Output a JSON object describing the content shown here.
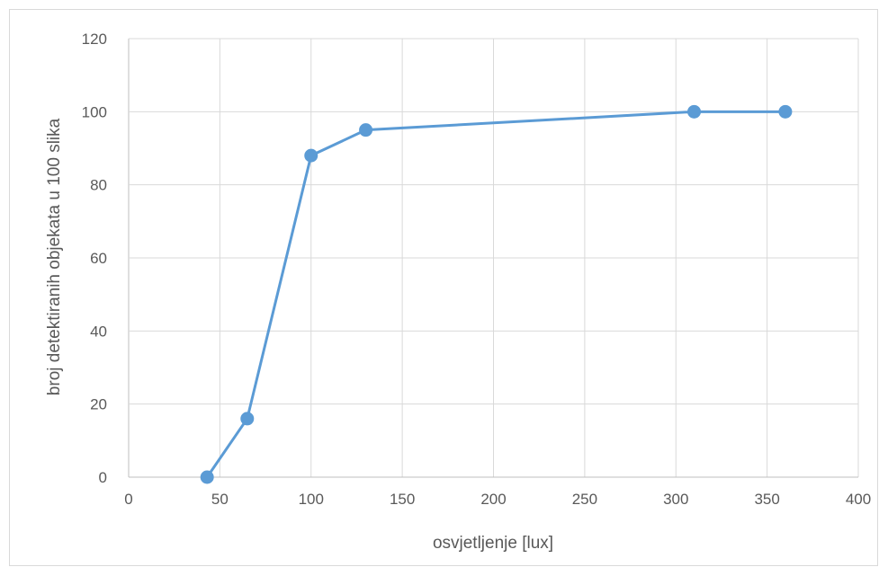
{
  "chart_data": {
    "type": "line",
    "title": "",
    "xlabel": "osvjetljenje [lux]",
    "ylabel": "broj detektiranih objekata u 100 slika",
    "xlim": [
      0,
      400
    ],
    "ylim": [
      0,
      120
    ],
    "x_ticks": [
      0,
      50,
      100,
      150,
      200,
      250,
      300,
      350,
      400
    ],
    "y_ticks": [
      0,
      20,
      40,
      60,
      80,
      100,
      120
    ],
    "grid": true,
    "legend": "none",
    "markers": true,
    "series": [
      {
        "color": "#5b9bd5",
        "x": [
          43,
          65,
          100,
          130,
          310,
          360
        ],
        "y": [
          0,
          16,
          88,
          95,
          100,
          100
        ]
      }
    ]
  }
}
